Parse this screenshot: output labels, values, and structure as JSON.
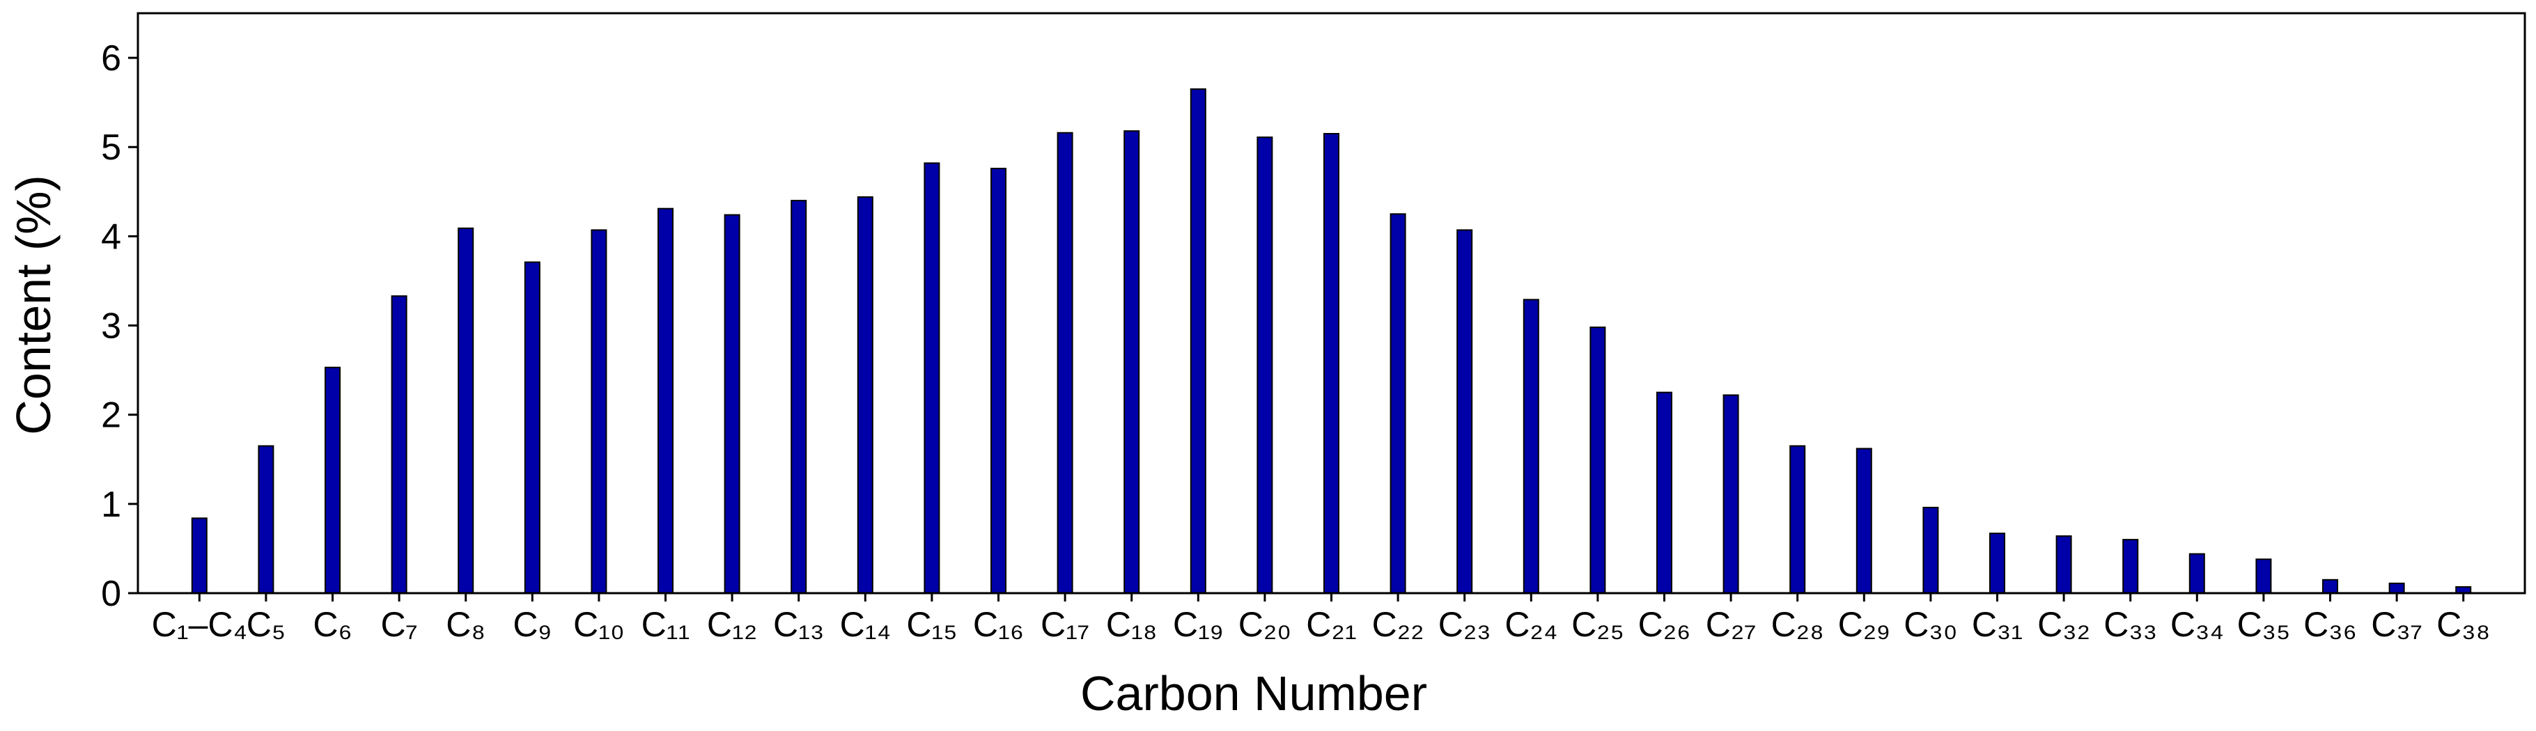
{
  "chart_data": {
    "type": "bar",
    "x_label": "Carbon Number",
    "y_label": "Content (%)",
    "categories": [
      "C₁–C₄",
      "C₅",
      "C₆",
      "C₇",
      "C₈",
      "C₉",
      "C₁₀",
      "C₁₁",
      "C₁₂",
      "C₁₃",
      "C₁₄",
      "C₁₅",
      "C₁₆",
      "C₁₇",
      "C₁₈",
      "C₁₉",
      "C₂₀",
      "C₂₁",
      "C₂₂",
      "C₂₃",
      "C₂₄",
      "C₂₅",
      "C₂₆",
      "C₂₇",
      "C₂₈",
      "C₂₉",
      "C₃₀",
      "C₃₁",
      "C₃₂",
      "C₃₃",
      "C₃₄",
      "C₃₅",
      "C₃₆",
      "C₃₇",
      "C₃₈"
    ],
    "values": [
      0.84,
      1.65,
      2.53,
      3.33,
      4.09,
      3.71,
      4.07,
      4.31,
      4.24,
      4.4,
      4.44,
      4.82,
      4.76,
      5.16,
      5.18,
      5.65,
      5.11,
      5.15,
      4.25,
      4.07,
      3.29,
      2.98,
      2.25,
      2.22,
      1.65,
      1.62,
      0.96,
      0.67,
      0.64,
      0.6,
      0.44,
      0.38,
      0.15,
      0.11,
      0.07
    ],
    "color": "#0000a8",
    "ylim": [
      0,
      6.5
    ],
    "yticks": [
      0,
      1,
      2,
      3,
      4,
      5,
      6
    ],
    "grid": false
  }
}
